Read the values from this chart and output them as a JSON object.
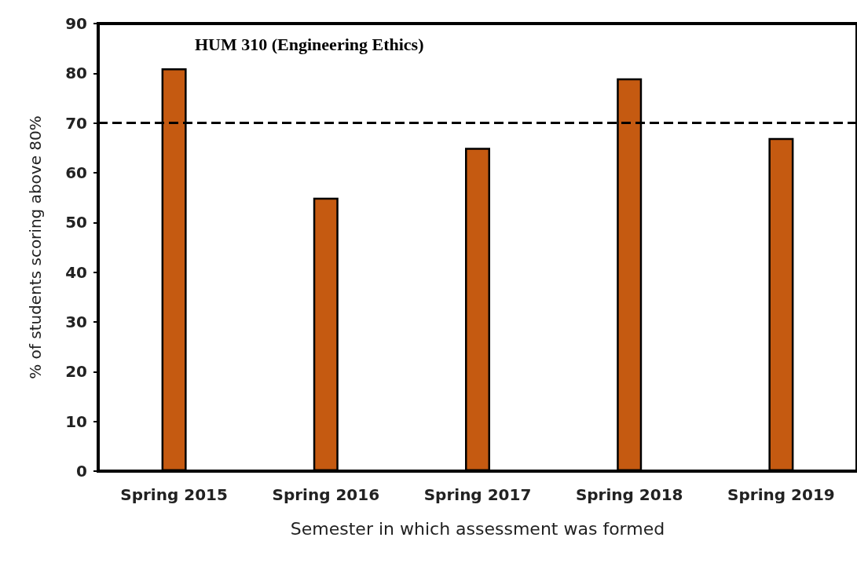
{
  "chart_data": {
    "type": "bar",
    "title": "HUM 310 (Engineering Ethics)",
    "xlabel": "Semester in which assessment was formed",
    "ylabel": "% of students scoring above 80%",
    "categories": [
      "Spring 2015",
      "Spring 2016",
      "Spring 2017",
      "Spring 2018",
      "Spring 2019"
    ],
    "values": [
      81,
      55,
      65,
      79,
      67
    ],
    "color": "#c55a11",
    "ylim": [
      0,
      90
    ],
    "yticks": [
      0,
      10,
      20,
      30,
      40,
      50,
      60,
      70,
      80,
      90
    ],
    "grid": false,
    "ref_lines": [
      {
        "axis": "y",
        "value": 70,
        "color": "#000000",
        "line_style": "dashed"
      }
    ]
  }
}
